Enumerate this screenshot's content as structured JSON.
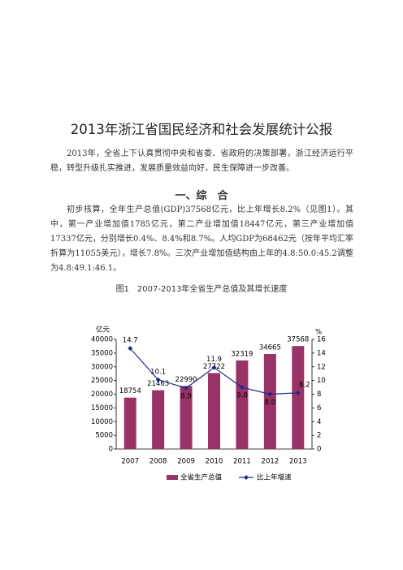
{
  "title": "2013年浙江省国民经济和社会发展统计公报",
  "intro": "2013年，全省上下认真贯彻中央和省委、省政府的决策部署，浙江经济运行平稳，转型升级扎实推进，发展质量效益向好，民生保障进一步改善。",
  "section": {
    "heading": "一、综　合",
    "text": "初步核算，全年生产总值(GDP)37568亿元，比上年增长8.2%（见图1）。其中，第一产业增加值1785亿元，第二产业增加值18447亿元，第三产业增加值17337亿元，分别增长0.4%、8.4%和8.7%。人均GDP为68462元（按年平均汇率折算为11055美元），增长7.8%。三次产业增加值结构由上年的4.8:50.0:45.2调整为4.8:49.1:46.1。"
  },
  "figure_caption": "图1　2007-2013年全省生产总值及其增长速度",
  "chart_data": {
    "type": "bar-line",
    "y_label": "亿元",
    "y2_label": "%",
    "categories": [
      "2007",
      "2008",
      "2009",
      "2010",
      "2011",
      "2012",
      "2013"
    ],
    "series": [
      {
        "name": "全省生产总值",
        "type": "bar",
        "color": "#993366",
        "values": [
          18754,
          21463,
          22990,
          27722,
          32319,
          34665,
          37568
        ]
      },
      {
        "name": "比上年增速",
        "type": "line",
        "axis": "y2",
        "color": "#1f2a86",
        "values": [
          14.7,
          10.1,
          8.9,
          11.9,
          9.0,
          8.0,
          8.2
        ],
        "value_labels": [
          "14.7",
          "10.1",
          "8.9",
          "11.9",
          "9.0",
          "8.0",
          "8.2"
        ]
      }
    ],
    "ylim": [
      0,
      40000
    ],
    "yticks": [
      0,
      5000,
      10000,
      15000,
      20000,
      25000,
      30000,
      35000,
      40000
    ],
    "y2lim": [
      0,
      16
    ],
    "y2ticks": [
      0,
      2,
      4,
      6,
      8,
      10,
      12,
      14,
      16
    ],
    "legend": "bottom"
  }
}
